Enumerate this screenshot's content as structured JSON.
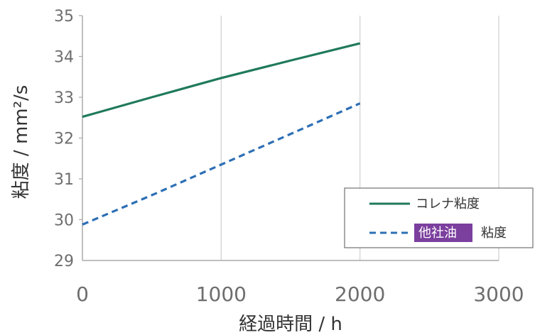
{
  "chart_data": {
    "type": "line",
    "xlabel": "経過時間 / h",
    "ylabel": "粘度 / mm²/s",
    "xlim": [
      0,
      3000
    ],
    "ylim": [
      29,
      35
    ],
    "x_ticks": [
      "0",
      "1000",
      "2000",
      "3000"
    ],
    "y_ticks": [
      "29",
      "30",
      "31",
      "32",
      "33",
      "34",
      "35"
    ],
    "grid": "vertical",
    "legend_position": "bottom-right",
    "series": [
      {
        "name": "コレナ粘度",
        "style": "solid",
        "color": "#1f7a5a",
        "x": [
          0,
          500,
          1000,
          1500,
          2000
        ],
        "y": [
          32.52,
          33.0,
          33.47,
          33.9,
          34.32
        ]
      },
      {
        "name_highlight": "他社油",
        "name_rest": "粘度",
        "style": "dashed",
        "color": "#2d6fb5",
        "highlight_color": "#7b3f9e",
        "x": [
          0,
          500,
          1000,
          1500,
          2000
        ],
        "y": [
          29.88,
          30.6,
          31.35,
          32.1,
          32.85
        ]
      }
    ]
  }
}
